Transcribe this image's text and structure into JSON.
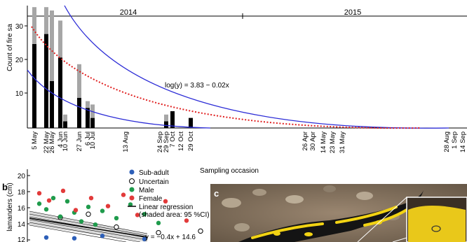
{
  "panel_a": {
    "ylabel": "Count of fire sa",
    "xlabel": "Sampling occasion",
    "year_labels": [
      "2014",
      "2015"
    ],
    "equation": "log(y) = 3.83 − 0.02x",
    "y_ticks": [
      "10",
      "20",
      "30"
    ]
  },
  "panel_b": {
    "label": "b",
    "ylabel": "lamanders (cm)",
    "y_ticks": [
      "12",
      "14",
      "16",
      "18",
      "20"
    ],
    "legend": [
      {
        "label": "Sub-adult",
        "color": "#2d5fb8",
        "marker": "filled-circle"
      },
      {
        "label": "Uncertain",
        "color": "#000000",
        "marker": "open-circle"
      },
      {
        "label": "Male",
        "color": "#1f9b4c",
        "marker": "filled-circle"
      },
      {
        "label": "Female",
        "color": "#e23a3a",
        "marker": "filled-circle"
      },
      {
        "label": "Linear regression",
        "color": "#000000",
        "marker": "line"
      }
    ],
    "legend_note": "(shaded area: 95 %CI)",
    "equation": "y = −0.4x + 14.6"
  },
  "panel_c": {
    "label": "c"
  },
  "chart_data": [
    {
      "type": "bar",
      "title": "",
      "xlabel": "Sampling occasion",
      "ylabel": "Count of fire sa",
      "ylim": [
        0,
        36
      ],
      "stacked": true,
      "categories": [
        "5 May",
        "22 May",
        "26 May",
        "4 Jun",
        "10 Jun",
        "27 Jun",
        "6 Jul",
        "10 Jul",
        "13 Aug",
        "24 Sep",
        "29 Sep",
        "7 Oct",
        "12 Oct",
        "29 Oct",
        "26 Apr",
        "30 Apr",
        "14 May",
        "23 May",
        "31 May",
        "28 Aug",
        "1 Sep",
        "14 Sep"
      ],
      "series": [
        {
          "color": "#000000",
          "values": [
            25,
            28,
            14,
            21,
            2,
            9,
            6,
            3,
            0,
            0,
            2,
            5,
            0,
            3,
            0,
            0,
            0,
            0,
            0,
            0,
            0,
            0
          ]
        },
        {
          "color": "#a6a6a6",
          "values": [
            11,
            8,
            21,
            11,
            2,
            10,
            2,
            4,
            0,
            0,
            2,
            0,
            0,
            0,
            0,
            0,
            0,
            0,
            0,
            0,
            0,
            0
          ]
        }
      ],
      "annotations": [
        "log(y) = 3.83 − 0.02x"
      ],
      "grid": false
    },
    {
      "type": "scatter",
      "title": "",
      "xlabel": "",
      "ylabel": "lamanders (cm)",
      "ylim": [
        12,
        20
      ],
      "series": [
        {
          "name": "Sub-adult",
          "color": "#2d5fb8",
          "x": [
            1,
            3,
            5,
            8
          ],
          "y": [
            12.3,
            12.2,
            12.5,
            12.1
          ]
        },
        {
          "name": "Uncertain",
          "color": "#000000",
          "x": [
            2,
            4,
            6,
            9,
            12
          ],
          "y": [
            14.8,
            15.2,
            13.6,
            12.9,
            13.1
          ]
        },
        {
          "name": "Male",
          "color": "#1f9b4c",
          "x": [
            0.5,
            1,
            1.5,
            2,
            2.5,
            3,
            3.5,
            4,
            4.5,
            5,
            6,
            7,
            8,
            9
          ],
          "y": [
            16.5,
            15.8,
            17.2,
            14.9,
            16.8,
            15.4,
            14.3,
            16.1,
            13.9,
            15.6,
            14.7,
            16.4,
            15.2,
            14.1
          ]
        },
        {
          "name": "Female",
          "color": "#e23a3a",
          "x": [
            0.5,
            1.2,
            2.2,
            3.1,
            4.2,
            5.4,
            6.5,
            7.5,
            9.5,
            11,
            13
          ],
          "y": [
            17.8,
            16.9,
            18.1,
            15.7,
            17.2,
            16.2,
            17.6,
            15.1,
            16.8,
            14.4,
            16.7
          ]
        }
      ],
      "regression": {
        "name": "Linear regression",
        "slope": -0.4,
        "intercept": 14.6
      },
      "annotations": [
        "y = −0.4x + 14.6"
      ]
    }
  ]
}
